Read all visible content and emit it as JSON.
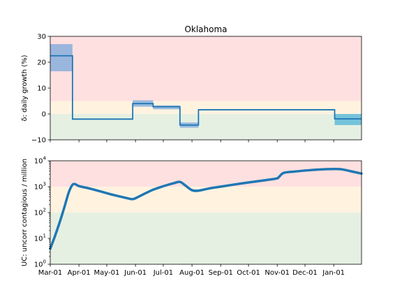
{
  "colors": {
    "zone_red": "#ffe0e0",
    "zone_yellow": "#fff3e0",
    "zone_green": "#e5f0e2",
    "line": "#1f77b4",
    "band": "#7aa8dc",
    "band_cyan": "#4fb4d8"
  },
  "chart_data": [
    {
      "type": "line",
      "title": "Oklahoma",
      "ylabel": "δ: daily growth (%)",
      "ylim": [
        -10,
        30
      ],
      "yticks": [
        -10,
        0,
        10,
        20,
        30
      ],
      "ytick_labels": [
        "−10",
        "0",
        "10",
        "20",
        "30"
      ],
      "xlim": [
        "2020-03-01",
        "2021-01-31"
      ],
      "grid": false,
      "zones": [
        {
          "from": 5,
          "to": 30,
          "color": "red"
        },
        {
          "from": 0,
          "to": 5,
          "color": "yellow"
        },
        {
          "from": -10,
          "to": 0,
          "color": "green"
        }
      ],
      "segments": [
        {
          "start": "2020-03-01",
          "end": "2020-03-25",
          "value": 22.5,
          "low": 16.5,
          "high": 27.0
        },
        {
          "start": "2020-03-25",
          "end": "2020-05-29",
          "value": -2.0,
          "low": -2.3,
          "high": -1.7
        },
        {
          "start": "2020-05-29",
          "end": "2020-06-20",
          "value": 4.0,
          "low": 2.8,
          "high": 5.3
        },
        {
          "start": "2020-06-20",
          "end": "2020-07-19",
          "value": 2.8,
          "low": 1.8,
          "high": 3.3
        },
        {
          "start": "2020-07-19",
          "end": "2020-08-08",
          "value": -4.3,
          "low": -5.3,
          "high": -3.3
        },
        {
          "start": "2020-08-08",
          "end": "2021-01-02",
          "value": 1.6,
          "low": 1.4,
          "high": 1.8
        },
        {
          "start": "2021-01-02",
          "end": "2021-01-31",
          "value": -1.9,
          "low": -4.3,
          "high": 0.0
        }
      ]
    },
    {
      "type": "line",
      "ylabel": "UC: uncorr contagious / million",
      "yscale": "log",
      "ylim": [
        1,
        10000
      ],
      "yticks": [
        1,
        10,
        100,
        1000,
        10000
      ],
      "ytick_labels": [
        {
          "base": "10",
          "exp": "0"
        },
        {
          "base": "10",
          "exp": "1"
        },
        {
          "base": "10",
          "exp": "2"
        },
        {
          "base": "10",
          "exp": "3"
        },
        {
          "base": "10",
          "exp": "4"
        }
      ],
      "xlim": [
        "2020-03-01",
        "2021-01-31"
      ],
      "xticks": [
        "2020-03-01",
        "2020-04-01",
        "2020-05-01",
        "2020-06-01",
        "2020-07-01",
        "2020-08-01",
        "2020-09-01",
        "2020-10-01",
        "2020-11-01",
        "2020-12-01",
        "2021-01-01"
      ],
      "xtick_labels": [
        "Mar-01",
        "Apr-01",
        "May-01",
        "Jun-01",
        "Jul-01",
        "Aug-01",
        "Sep-01",
        "Oct-01",
        "Nov-01",
        "Dec-01",
        "Jan-01"
      ],
      "grid": false,
      "zones": [
        {
          "from": 1000,
          "to": 10000,
          "color": "red"
        },
        {
          "from": 100,
          "to": 1000,
          "color": "yellow"
        },
        {
          "from": 1,
          "to": 100,
          "color": "green"
        }
      ],
      "series": [
        {
          "x": [
            "2020-03-01",
            "2020-03-06",
            "2020-03-11",
            "2020-03-16",
            "2020-03-21",
            "2020-03-25",
            "2020-03-28",
            "2020-04-01",
            "2020-04-10",
            "2020-04-20",
            "2020-05-01",
            "2020-05-10",
            "2020-05-20",
            "2020-05-29",
            "2020-06-05",
            "2020-06-12",
            "2020-06-20",
            "2020-06-28",
            "2020-07-05",
            "2020-07-12",
            "2020-07-19",
            "2020-07-25",
            "2020-08-01",
            "2020-08-08",
            "2020-08-20",
            "2020-09-01",
            "2020-09-15",
            "2020-10-01",
            "2020-10-15",
            "2020-10-31",
            "2020-11-03",
            "2020-11-08",
            "2020-11-20",
            "2020-12-05",
            "2020-12-20",
            "2021-01-02",
            "2021-01-10",
            "2021-01-20",
            "2021-01-31"
          ],
          "values": [
            4,
            12,
            40,
            150,
            600,
            1180,
            1250,
            1050,
            890,
            720,
            560,
            460,
            380,
            330,
            420,
            560,
            760,
            960,
            1150,
            1350,
            1530,
            1100,
            730,
            700,
            860,
            1000,
            1200,
            1450,
            1700,
            2050,
            2400,
            3400,
            3850,
            4300,
            4650,
            4800,
            4650,
            3900,
            3200
          ]
        }
      ]
    }
  ]
}
